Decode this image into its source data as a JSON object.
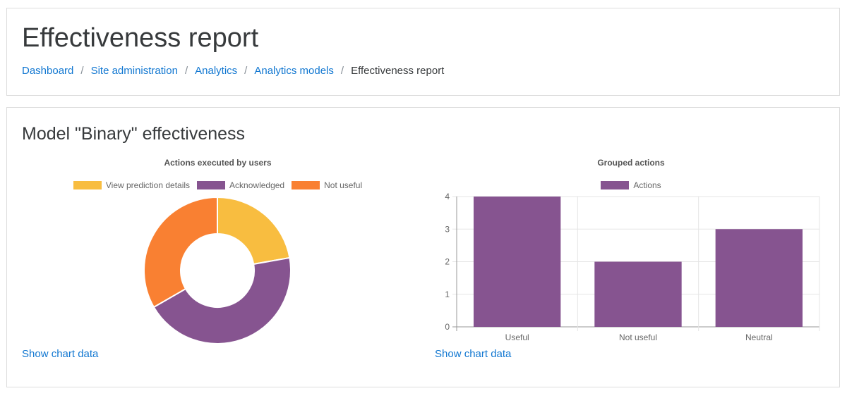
{
  "header": {
    "title": "Effectiveness report",
    "breadcrumb": [
      {
        "label": "Dashboard",
        "link": true
      },
      {
        "label": "Site administration",
        "link": true
      },
      {
        "label": "Analytics",
        "link": true
      },
      {
        "label": "Analytics models",
        "link": true
      },
      {
        "label": "Effectiveness report",
        "link": false
      }
    ],
    "separator": "/"
  },
  "main": {
    "section_title": "Model \"Binary\" effectiveness",
    "show_chart_data_label": "Show chart data"
  },
  "chart_data": [
    {
      "type": "pie",
      "variant": "doughnut",
      "title": "Actions executed by users",
      "categories": [
        "View prediction details",
        "Acknowledged",
        "Not useful"
      ],
      "values": [
        2,
        4,
        3
      ],
      "colors": [
        "#f8bd40",
        "#865490",
        "#f98032"
      ],
      "legend": "top"
    },
    {
      "type": "bar",
      "title": "Grouped actions",
      "categories": [
        "Useful",
        "Not useful",
        "Neutral"
      ],
      "series": [
        {
          "name": "Actions",
          "values": [
            4,
            2,
            3
          ],
          "color": "#865490"
        }
      ],
      "ylim": [
        0,
        4
      ],
      "yticks": [
        0,
        1,
        2,
        3,
        4
      ],
      "grid": true,
      "legend": "top"
    }
  ]
}
